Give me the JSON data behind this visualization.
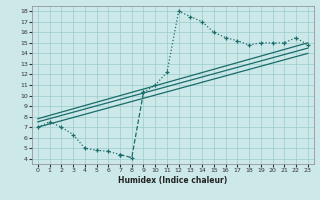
{
  "title": "",
  "xlabel": "Humidex (Indice chaleur)",
  "ylabel": "",
  "bg_color": "#cce8e8",
  "grid_color": "#99cccc",
  "line_color": "#1a6b6b",
  "xlim": [
    -0.5,
    23.5
  ],
  "ylim": [
    3.5,
    18.5
  ],
  "xticks": [
    0,
    1,
    2,
    3,
    4,
    5,
    6,
    7,
    8,
    9,
    10,
    11,
    12,
    13,
    14,
    15,
    16,
    17,
    18,
    19,
    20,
    21,
    22,
    23
  ],
  "yticks": [
    4,
    5,
    6,
    7,
    8,
    9,
    10,
    11,
    12,
    13,
    14,
    15,
    16,
    17,
    18
  ],
  "main_x": [
    0,
    1,
    2,
    3,
    4,
    5,
    6,
    7,
    8,
    9,
    10,
    11,
    12,
    13,
    14,
    15,
    16,
    17,
    18,
    19,
    20,
    21,
    22,
    23
  ],
  "main_y": [
    7.0,
    7.5,
    7.0,
    6.3,
    5.0,
    4.8,
    4.7,
    4.4,
    4.1,
    10.3,
    11.0,
    12.2,
    18.0,
    17.5,
    17.0,
    16.0,
    15.5,
    15.2,
    14.8,
    15.0,
    15.0,
    15.0,
    15.5,
    14.8
  ],
  "solid_break_start": 9,
  "dashed_range": [
    7,
    10
  ],
  "reg1": [
    7.5,
    14.5
  ],
  "reg2": [
    7.0,
    14.0
  ],
  "reg3": [
    7.8,
    15.0
  ]
}
